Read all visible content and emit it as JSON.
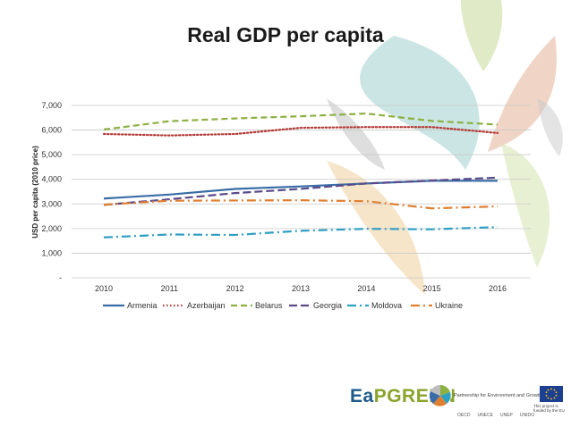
{
  "slide": {
    "title": "Real GDP per capita"
  },
  "footer": {
    "logo_text": "EaPGREEN",
    "logo_prefix": "Ea",
    "logo_suffix": "PGREEN",
    "partnership": "Partnership for Environment and Growth",
    "eu_caption": "This project is funded by the EU",
    "partners": [
      "OECD",
      "UNECE",
      "UNEP",
      "UNIDO"
    ]
  },
  "colors": {
    "armenia": "#3a6da6",
    "azerbaijan": "#b33a36",
    "belarus": "#8db043",
    "georgia": "#5b4a8a",
    "moldova": "#2f9fc2",
    "ukraine": "#e07e30",
    "grid": "#c8c8c8"
  },
  "chart_data": {
    "type": "line",
    "title": "",
    "ylabel": "USD per capita (2010 price)",
    "xlabel": "",
    "x": [
      "2010",
      "2011",
      "2012",
      "2013",
      "2014",
      "2015",
      "2016"
    ],
    "ylim": [
      0,
      7000
    ],
    "yticks": [
      "-",
      "1,000",
      "2,000",
      "3,000",
      "4,000",
      "5,000",
      "6,000",
      "7,000"
    ],
    "grid": true,
    "legend_position": "bottom",
    "series": [
      {
        "name": "Armenia",
        "style": "solid",
        "values": [
          3220,
          3380,
          3610,
          3710,
          3830,
          3940,
          3940
        ]
      },
      {
        "name": "Azerbaijan",
        "style": "dotted",
        "values": [
          5840,
          5780,
          5840,
          6090,
          6120,
          6120,
          5880
        ]
      },
      {
        "name": "Belarus",
        "style": "dashed",
        "values": [
          6020,
          6360,
          6470,
          6560,
          6670,
          6370,
          6220
        ]
      },
      {
        "name": "Georgia",
        "style": "longdash",
        "values": [
          2960,
          3190,
          3440,
          3610,
          3830,
          3950,
          4070
        ]
      },
      {
        "name": "Moldova",
        "style": "dashdot",
        "values": [
          1640,
          1760,
          1740,
          1910,
          1990,
          1970,
          2060
        ]
      },
      {
        "name": "Ukraine",
        "style": "longdashdot",
        "values": [
          2970,
          3130,
          3140,
          3150,
          3110,
          2820,
          2900
        ]
      }
    ]
  }
}
